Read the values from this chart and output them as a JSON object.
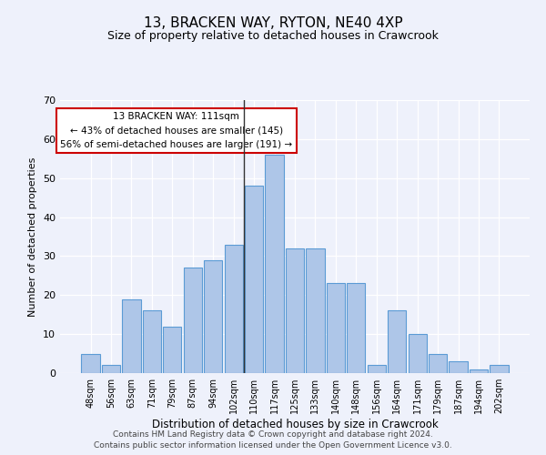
{
  "title": "13, BRACKEN WAY, RYTON, NE40 4XP",
  "subtitle": "Size of property relative to detached houses in Crawcrook",
  "xlabel": "Distribution of detached houses by size in Crawcrook",
  "ylabel": "Number of detached properties",
  "categories": [
    "48sqm",
    "56sqm",
    "63sqm",
    "71sqm",
    "79sqm",
    "87sqm",
    "94sqm",
    "102sqm",
    "110sqm",
    "117sqm",
    "125sqm",
    "133sqm",
    "140sqm",
    "148sqm",
    "156sqm",
    "164sqm",
    "171sqm",
    "179sqm",
    "187sqm",
    "194sqm",
    "202sqm"
  ],
  "values": [
    5,
    2,
    19,
    16,
    12,
    27,
    29,
    33,
    48,
    56,
    32,
    32,
    23,
    23,
    2,
    16,
    10,
    5,
    3,
    1,
    2
  ],
  "bar_color": "#aec6e8",
  "bar_edge_color": "#5b9bd5",
  "vline_index": 8,
  "vline_color": "#333333",
  "annotation_title": "13 BRACKEN WAY: 111sqm",
  "annotation_line1": "← 43% of detached houses are smaller (145)",
  "annotation_line2": "56% of semi-detached houses are larger (191) →",
  "annotation_box_color": "#ffffff",
  "annotation_box_edge": "#cc0000",
  "ylim": [
    0,
    70
  ],
  "yticks": [
    0,
    10,
    20,
    30,
    40,
    50,
    60,
    70
  ],
  "bg_color": "#eef1fb",
  "grid_color": "#ffffff",
  "footer1": "Contains HM Land Registry data © Crown copyright and database right 2024.",
  "footer2": "Contains public sector information licensed under the Open Government Licence v3.0."
}
